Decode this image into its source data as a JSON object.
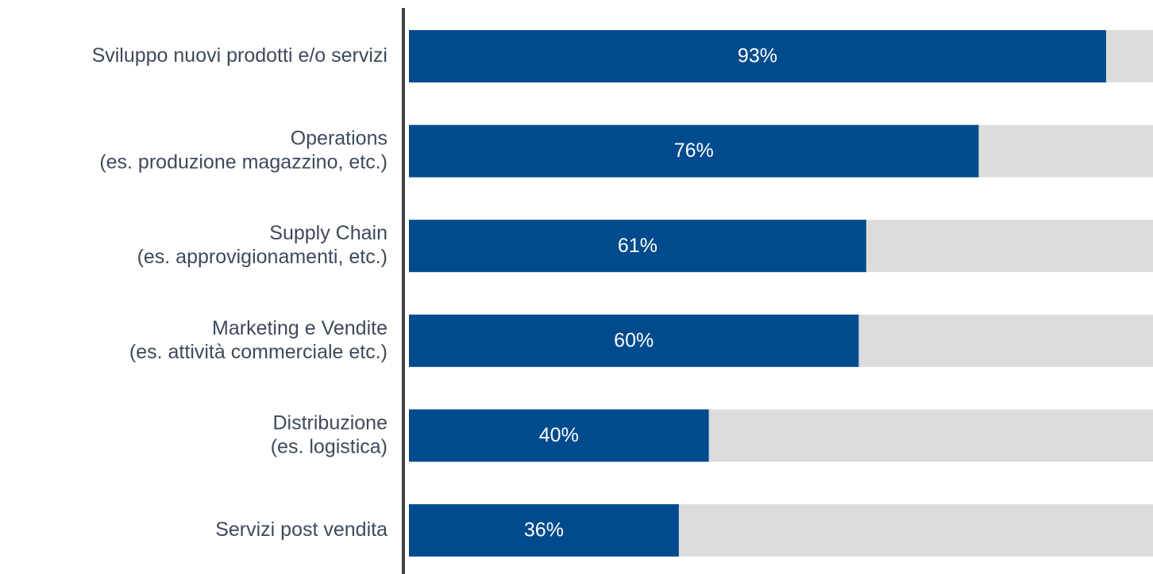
{
  "chart_data": {
    "type": "bar",
    "orientation": "horizontal",
    "categories": [
      "Sviluppo nuovi prodotti e/o servizi",
      "Operations\n(es. produzione magazzino, etc.)",
      "Supply Chain\n(es. approvigionamenti, etc.)",
      "Marketing e Vendite\n(es. attività commerciale etc.)",
      "Distribuzione\n(es. logistica)",
      "Servizi post vendita"
    ],
    "values": [
      93,
      76,
      61,
      60,
      40,
      36
    ],
    "value_labels": [
      "93%",
      "76%",
      "61%",
      "60%",
      "40%",
      "36%"
    ],
    "color": "#004b8d",
    "track_color": "#dcdcdc",
    "xlim": [
      0,
      100
    ]
  }
}
